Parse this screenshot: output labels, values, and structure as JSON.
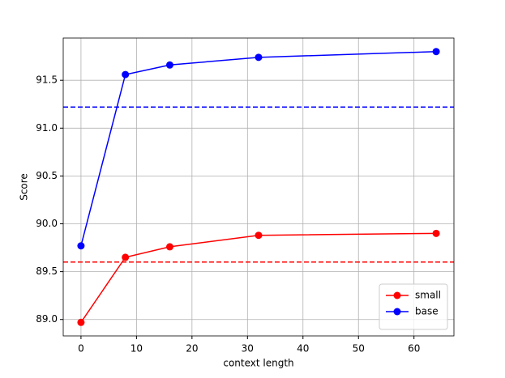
{
  "chart_data": {
    "type": "line",
    "x": [
      0,
      8,
      16,
      32,
      64
    ],
    "series": [
      {
        "name": "small",
        "color": "#ff0000",
        "values": [
          88.97,
          89.65,
          89.76,
          89.88,
          89.9
        ]
      },
      {
        "name": "base",
        "color": "#0000ff",
        "values": [
          89.77,
          91.56,
          91.66,
          91.74,
          91.8
        ]
      }
    ],
    "hlines": [
      {
        "value": 89.6,
        "color": "#ff0000",
        "style": "dashed"
      },
      {
        "value": 91.22,
        "color": "#0000ff",
        "style": "dashed"
      }
    ],
    "xlabel": "context length",
    "ylabel": "Score",
    "xlim": [
      -3.2,
      67.2
    ],
    "xticks": [
      0,
      10,
      20,
      30,
      40,
      50,
      60
    ],
    "ylim": [
      88.8285,
      91.9415
    ],
    "yticks": [
      {
        "value": 89.0,
        "label": "89.0"
      },
      {
        "value": 89.5,
        "label": "89.5"
      },
      {
        "value": 90.0,
        "label": "90.0"
      },
      {
        "value": 90.5,
        "label": "90.5"
      },
      {
        "value": 91.0,
        "label": "91.0"
      },
      {
        "value": 91.5,
        "label": "91.5"
      }
    ],
    "grid": true,
    "legend": "lower right"
  }
}
